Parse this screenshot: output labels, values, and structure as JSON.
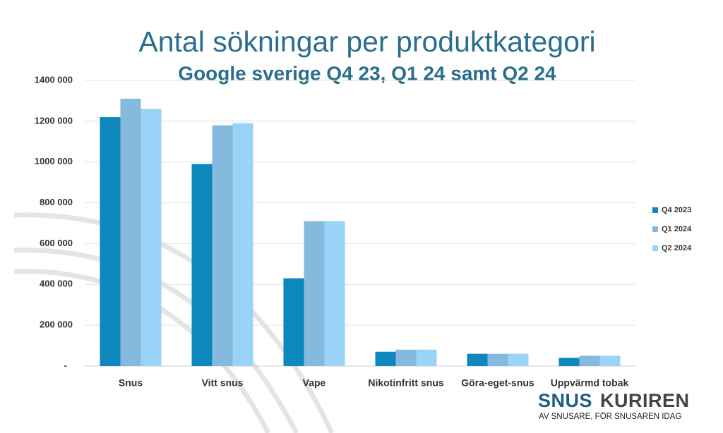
{
  "chart_data": {
    "type": "bar",
    "title": "Antal sökningar per produktkategori",
    "subtitle": "Google sverige Q4 23, Q1 24 samt Q2 24",
    "categories": [
      "Snus",
      "Vitt snus",
      "Vape",
      "Nikotinfritt snus",
      "Göra-eget-snus",
      "Uppvärmd tobak"
    ],
    "series": [
      {
        "name": "Q4 2023",
        "color": "#0e87bc",
        "values": [
          1220000,
          990000,
          430000,
          70000,
          60000,
          40000
        ]
      },
      {
        "name": "Q1 2024",
        "color": "#86b9de",
        "values": [
          1310000,
          1180000,
          710000,
          80000,
          60000,
          50000
        ]
      },
      {
        "name": "Q2 2024",
        "color": "#99d3f7",
        "values": [
          1260000,
          1190000,
          710000,
          80000,
          60000,
          50000
        ]
      }
    ],
    "ylim": [
      0,
      1400000
    ],
    "yticks": [
      {
        "value": 0,
        "label": "-"
      },
      {
        "value": 200000,
        "label": "200 000"
      },
      {
        "value": 400000,
        "label": "400 000"
      },
      {
        "value": 600000,
        "label": "600 000"
      },
      {
        "value": 800000,
        "label": "800 000"
      },
      {
        "value": 1000000,
        "label": "1000 000"
      },
      {
        "value": 1200000,
        "label": "1200 000"
      },
      {
        "value": 1400000,
        "label": "1400 000"
      }
    ],
    "grid": true,
    "legend": "right"
  },
  "logo": {
    "brand_a": "SNUS",
    "brand_b": "KURIREN",
    "tagline": "AV SNUSARE, FÖR SNUSAREN IDAG"
  }
}
